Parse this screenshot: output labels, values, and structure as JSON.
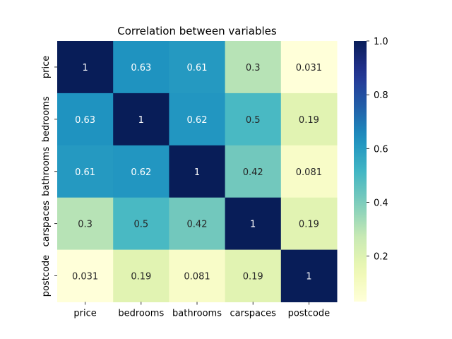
{
  "chart_data": {
    "type": "heatmap",
    "title": "Correlation between variables",
    "x_labels": [
      "price",
      "bedrooms",
      "bathrooms",
      "carspaces",
      "postcode"
    ],
    "y_labels": [
      "price",
      "bedrooms",
      "bathrooms",
      "carspaces",
      "postcode"
    ],
    "values": [
      [
        1,
        0.63,
        0.61,
        0.3,
        0.031
      ],
      [
        0.63,
        1,
        0.62,
        0.5,
        0.19
      ],
      [
        0.61,
        0.62,
        1,
        0.42,
        0.081
      ],
      [
        0.3,
        0.5,
        0.42,
        1,
        0.19
      ],
      [
        0.031,
        0.19,
        0.081,
        0.19,
        1
      ]
    ],
    "cell_labels": [
      [
        "1",
        "0.63",
        "0.61",
        "0.3",
        "0.031"
      ],
      [
        "0.63",
        "1",
        "0.62",
        "0.5",
        "0.19"
      ],
      [
        "0.61",
        "0.62",
        "1",
        "0.42",
        "0.081"
      ],
      [
        "0.3",
        "0.5",
        "0.42",
        "1",
        "0.19"
      ],
      [
        "0.031",
        "0.19",
        "0.081",
        "0.19",
        "1"
      ]
    ],
    "colormap": "YlGnBu",
    "colorbar": {
      "range": [
        0.031,
        1.0
      ],
      "ticks": [
        0.2,
        0.4,
        0.6,
        0.8,
        1.0
      ],
      "tick_labels": [
        "0.2",
        "0.4",
        "0.6",
        "0.8",
        "1.0"
      ]
    }
  }
}
